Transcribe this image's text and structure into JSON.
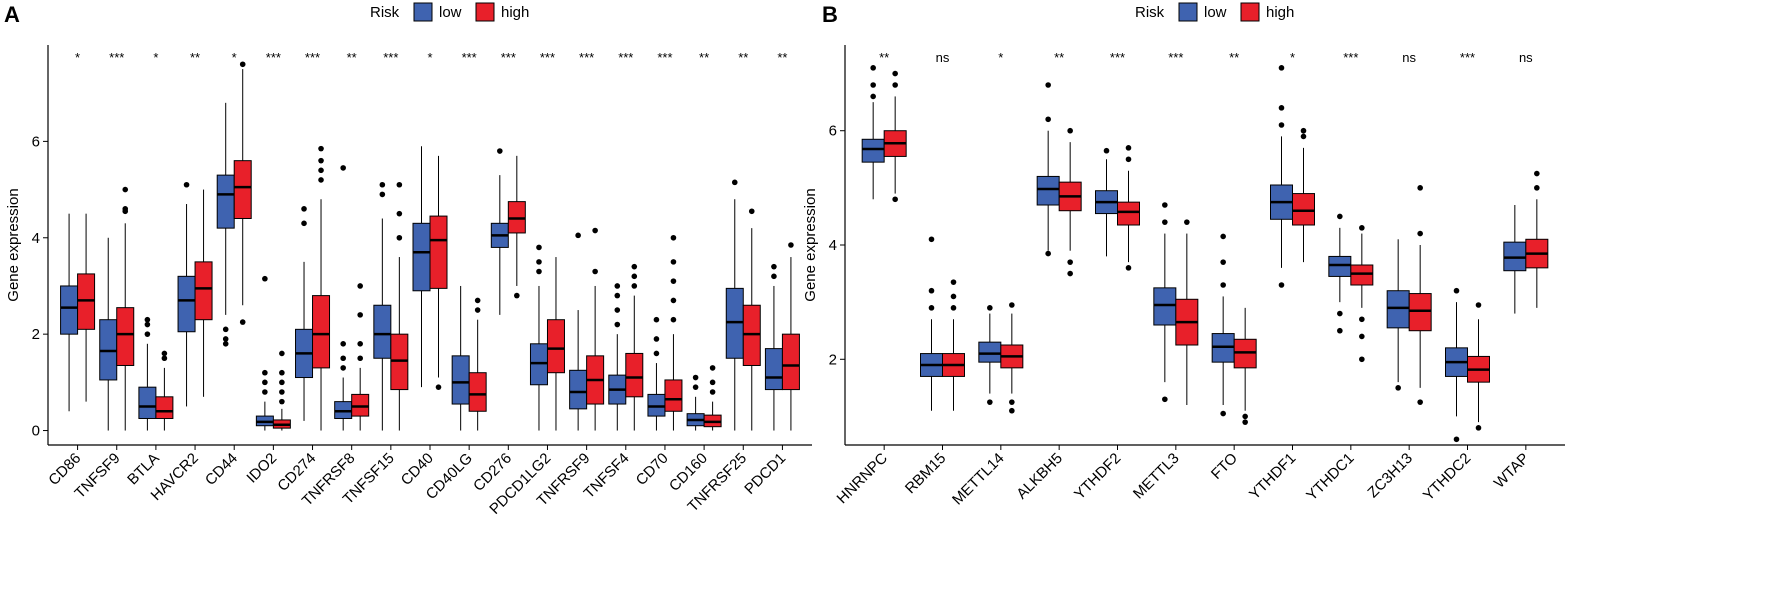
{
  "chart_data": [
    {
      "type": "boxplot",
      "panel_label": "A",
      "legend_title": "Risk",
      "ylabel": "Gene expression",
      "ylim": [
        -0.3,
        8.0
      ],
      "yticks": [
        0,
        2,
        4,
        6
      ],
      "categories": [
        "CD86",
        "TNFSF9",
        "BTLA",
        "HAVCR2",
        "CD44",
        "IDO2",
        "CD274",
        "TNFRSF8",
        "TNFSF15",
        "CD40",
        "CD40LG",
        "CD276",
        "PDCD1LG2",
        "TNFRSF9",
        "TNFSF4",
        "CD70",
        "CD160",
        "TNFRSF25",
        "PDCD1"
      ],
      "significance": [
        "*",
        "***",
        "*",
        "**",
        "*",
        "***",
        "***",
        "**",
        "***",
        "*",
        "***",
        "***",
        "***",
        "***",
        "***",
        "***",
        "**",
        "**",
        "**"
      ],
      "series": [
        {
          "name": "low",
          "color": "#3f63b0",
          "whisker_low": [
            0.4,
            0,
            0,
            0.5,
            2.4,
            0,
            0.2,
            0,
            0,
            0.9,
            0,
            2.4,
            0,
            0,
            0,
            0,
            0,
            0,
            0
          ],
          "q1": [
            2.0,
            1.05,
            0.25,
            2.05,
            4.2,
            0.1,
            1.1,
            0.25,
            1.5,
            2.9,
            0.55,
            3.8,
            0.95,
            0.45,
            0.55,
            0.3,
            0.1,
            1.5,
            0.85
          ],
          "median": [
            2.55,
            1.65,
            0.5,
            2.7,
            4.9,
            0.18,
            1.6,
            0.4,
            2.0,
            3.7,
            1.0,
            4.05,
            1.4,
            0.8,
            0.85,
            0.5,
            0.22,
            2.25,
            1.1
          ],
          "q3": [
            3.0,
            2.3,
            0.9,
            3.2,
            5.3,
            0.3,
            2.1,
            0.6,
            2.6,
            4.3,
            1.55,
            4.3,
            1.8,
            1.25,
            1.15,
            0.75,
            0.35,
            2.95,
            1.7
          ],
          "whisker_high": [
            4.5,
            4.0,
            1.8,
            4.7,
            6.8,
            0.6,
            3.5,
            1.1,
            4.4,
            5.9,
            3.0,
            5.3,
            3.0,
            2.5,
            2.0,
            1.4,
            0.7,
            4.8,
            3.0
          ],
          "outliers": [
            [],
            [],
            [
              2.0,
              2.2,
              2.3
            ],
            [
              5.1
            ],
            [
              1.8,
              1.9,
              2.1
            ],
            [
              0.8,
              1.0,
              1.2,
              3.15
            ],
            [
              4.3,
              4.6
            ],
            [
              1.3,
              1.5,
              1.8,
              5.45
            ],
            [
              4.9,
              5.1
            ],
            [],
            [],
            [
              5.8
            ],
            [
              3.3,
              3.5,
              3.8
            ],
            [
              4.05
            ],
            [
              2.2,
              2.5,
              2.8,
              3.0
            ],
            [
              1.6,
              1.9,
              2.3
            ],
            [
              0.9,
              1.1
            ],
            [
              5.15
            ],
            [
              3.2,
              3.4
            ]
          ]
        },
        {
          "name": "high",
          "color": "#e8202a",
          "whisker_low": [
            0.6,
            0,
            0,
            0.7,
            2.6,
            0,
            0,
            0,
            0,
            1.1,
            0,
            3.0,
            0,
            0,
            0,
            0,
            0,
            0,
            0
          ],
          "q1": [
            2.1,
            1.35,
            0.25,
            2.3,
            4.4,
            0.05,
            1.3,
            0.3,
            0.85,
            2.95,
            0.4,
            4.1,
            1.2,
            0.55,
            0.7,
            0.4,
            0.08,
            1.35,
            0.85
          ],
          "median": [
            2.7,
            2.0,
            0.4,
            2.95,
            5.05,
            0.12,
            2.0,
            0.5,
            1.45,
            3.95,
            0.75,
            4.4,
            1.7,
            1.05,
            1.1,
            0.65,
            0.18,
            2.0,
            1.35
          ],
          "q3": [
            3.25,
            2.55,
            0.7,
            3.5,
            5.6,
            0.22,
            2.8,
            0.75,
            2.0,
            4.45,
            1.2,
            4.75,
            2.3,
            1.55,
            1.6,
            1.05,
            0.32,
            2.6,
            2.0
          ],
          "whisker_high": [
            4.5,
            4.3,
            1.3,
            5.0,
            7.5,
            0.45,
            4.8,
            1.3,
            3.6,
            5.7,
            2.3,
            5.7,
            3.6,
            3.0,
            2.8,
            2.0,
            0.6,
            4.2,
            3.6
          ],
          "outliers": [
            [],
            [
              4.55,
              4.6,
              5.0
            ],
            [
              1.5,
              1.6
            ],
            [],
            [
              2.25,
              7.6
            ],
            [
              0.6,
              0.8,
              1.0,
              1.2,
              1.6
            ],
            [
              5.2,
              5.4,
              5.6,
              5.85
            ],
            [
              1.5,
              1.8,
              2.4,
              3.0
            ],
            [
              4.0,
              4.5,
              5.1
            ],
            [
              0.9
            ],
            [
              2.5,
              2.7
            ],
            [
              2.8
            ],
            [],
            [
              3.3,
              4.15
            ],
            [
              3.0,
              3.2,
              3.4
            ],
            [
              2.3,
              2.7,
              3.1,
              3.5,
              4.0
            ],
            [
              0.8,
              1.0,
              1.3
            ],
            [
              4.55
            ],
            [
              3.85
            ]
          ]
        }
      ]
    },
    {
      "type": "boxplot",
      "panel_label": "B",
      "legend_title": "Risk",
      "ylabel": "Gene expression",
      "ylim": [
        0.5,
        7.5
      ],
      "yticks": [
        2,
        4,
        6
      ],
      "categories": [
        "HNRNPC",
        "RBM15",
        "METTL14",
        "ALKBH5",
        "YTHDF2",
        "METTL3",
        "FTO",
        "YTHDF1",
        "YTHDC1",
        "ZC3H13",
        "YTHDC2",
        "WTAP"
      ],
      "significance": [
        "**",
        "ns",
        "*",
        "**",
        "***",
        "***",
        "**",
        "*",
        "***",
        "ns",
        "***",
        "ns"
      ],
      "series": [
        {
          "name": "low",
          "color": "#3f63b0",
          "whisker_low": [
            4.8,
            1.1,
            1.4,
            3.9,
            3.8,
            1.6,
            1.2,
            3.6,
            3.0,
            1.6,
            1.0,
            2.8
          ],
          "q1": [
            5.45,
            1.7,
            1.95,
            4.7,
            4.55,
            2.6,
            1.95,
            4.45,
            3.45,
            2.55,
            1.7,
            3.55
          ],
          "median": [
            5.68,
            1.9,
            2.1,
            4.98,
            4.75,
            2.95,
            2.22,
            4.75,
            3.65,
            2.9,
            1.95,
            3.78
          ],
          "q3": [
            5.85,
            2.1,
            2.3,
            5.2,
            4.95,
            3.25,
            2.45,
            5.05,
            3.8,
            3.2,
            2.2,
            4.05
          ],
          "whisker_high": [
            6.5,
            2.7,
            2.8,
            6.0,
            5.5,
            4.2,
            3.1,
            5.9,
            4.3,
            4.1,
            3.0,
            4.7
          ],
          "outliers": [
            [
              6.6,
              6.8,
              7.1
            ],
            [
              2.9,
              3.2,
              4.1
            ],
            [
              1.25,
              2.9
            ],
            [
              3.85,
              6.2,
              6.8
            ],
            [
              5.65
            ],
            [
              1.3,
              4.4,
              4.7
            ],
            [
              1.05,
              3.3,
              3.7,
              4.15
            ],
            [
              3.3,
              6.1,
              6.4,
              7.1
            ],
            [
              2.5,
              2.8,
              4.5
            ],
            [
              1.5
            ],
            [
              0.6,
              3.2
            ],
            []
          ]
        },
        {
          "name": "high",
          "color": "#e8202a",
          "whisker_low": [
            4.9,
            1.1,
            1.4,
            3.9,
            3.7,
            1.2,
            1.1,
            3.7,
            2.9,
            1.5,
            0.9,
            2.9
          ],
          "q1": [
            5.55,
            1.7,
            1.85,
            4.6,
            4.35,
            2.25,
            1.85,
            4.35,
            3.3,
            2.5,
            1.6,
            3.6
          ],
          "median": [
            5.78,
            1.9,
            2.05,
            4.85,
            4.58,
            2.65,
            2.12,
            4.6,
            3.5,
            2.85,
            1.82,
            3.85
          ],
          "q3": [
            6.0,
            2.1,
            2.25,
            5.1,
            4.75,
            3.05,
            2.35,
            4.9,
            3.65,
            3.15,
            2.05,
            4.1
          ],
          "whisker_high": [
            6.6,
            2.7,
            2.8,
            5.8,
            5.3,
            4.2,
            2.9,
            5.7,
            4.2,
            4.0,
            2.7,
            4.8
          ],
          "outliers": [
            [
              4.8,
              6.8,
              7.0
            ],
            [
              2.9,
              3.1,
              3.35
            ],
            [
              1.1,
              1.25,
              2.95
            ],
            [
              3.5,
              3.7,
              6.0
            ],
            [
              3.6,
              5.5,
              5.7
            ],
            [
              4.4
            ],
            [
              0.9,
              1.0
            ],
            [
              5.9,
              6.0
            ],
            [
              2.0,
              2.4,
              2.7,
              4.3
            ],
            [
              1.25,
              4.2,
              5.0
            ],
            [
              0.8,
              2.95
            ],
            [
              5.0,
              5.25
            ]
          ]
        }
      ]
    }
  ]
}
